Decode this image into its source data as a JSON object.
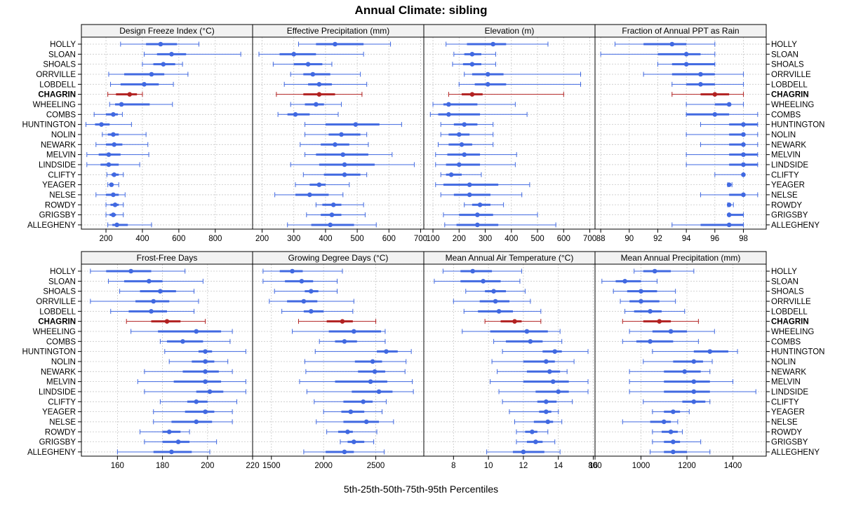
{
  "chart_data": {
    "type": "dot-range",
    "title": "Annual Climate: sibling",
    "xlabel": "5th-25th-50th-75th-95th Percentiles",
    "sites": [
      "HOLLY",
      "SLOAN",
      "SHOALS",
      "ORRVILLE",
      "LOBDELL",
      "CHAGRIN",
      "WHEELING",
      "COMBS",
      "HUNTINGTON",
      "NOLIN",
      "NEWARK",
      "MELVIN",
      "LINDSIDE",
      "CLIFTY",
      "YEAGER",
      "NELSE",
      "ROWDY",
      "GRIGSBY",
      "ALLEGHENY"
    ],
    "highlight": "CHAGRIN",
    "colors": {
      "normal": "#4169E1",
      "highlight": "#B22222",
      "grid": "#C8C8C8",
      "strip": "#F2F2F2"
    },
    "panels": [
      {
        "label": "Design Freeze Index (°C)",
        "xlim": [
          65,
          1005
        ],
        "ticks": [
          200,
          400,
          600,
          800
        ],
        "values": [
          [
            280,
            420,
            500,
            590,
            710
          ],
          [
            410,
            480,
            560,
            640,
            940
          ],
          [
            400,
            460,
            515,
            580,
            620
          ],
          [
            215,
            300,
            450,
            520,
            650
          ],
          [
            225,
            280,
            410,
            490,
            570
          ],
          [
            210,
            255,
            330,
            370,
            400
          ],
          [
            220,
            250,
            285,
            440,
            565
          ],
          [
            135,
            200,
            240,
            265,
            290
          ],
          [
            90,
            140,
            175,
            220,
            340
          ],
          [
            180,
            210,
            240,
            270,
            420
          ],
          [
            145,
            200,
            245,
            290,
            430
          ],
          [
            95,
            160,
            215,
            280,
            435
          ],
          [
            95,
            170,
            215,
            270,
            385
          ],
          [
            205,
            230,
            245,
            270,
            295
          ],
          [
            210,
            225,
            230,
            240,
            270
          ],
          [
            145,
            200,
            240,
            270,
            305
          ],
          [
            200,
            225,
            250,
            270,
            295
          ],
          [
            200,
            220,
            240,
            255,
            295
          ],
          [
            210,
            235,
            260,
            320,
            450
          ]
        ]
      },
      {
        "label": "Effective Precipitation (mm)",
        "xlim": [
          170,
          710
        ],
        "ticks": [
          200,
          300,
          400,
          500,
          600,
          700
        ],
        "values": [
          [
            315,
            370,
            430,
            520,
            605
          ],
          [
            190,
            255,
            300,
            370,
            520
          ],
          [
            235,
            300,
            345,
            390,
            420
          ],
          [
            290,
            330,
            360,
            415,
            510
          ],
          [
            270,
            345,
            380,
            420,
            530
          ],
          [
            245,
            330,
            380,
            430,
            515
          ],
          [
            290,
            335,
            370,
            395,
            450
          ],
          [
            250,
            280,
            305,
            350,
            440
          ],
          [
            335,
            400,
            495,
            570,
            640
          ],
          [
            335,
            410,
            450,
            510,
            530
          ],
          [
            320,
            385,
            430,
            475,
            535
          ],
          [
            335,
            370,
            455,
            535,
            610
          ],
          [
            290,
            380,
            460,
            555,
            680
          ],
          [
            330,
            395,
            460,
            510,
            530
          ],
          [
            305,
            350,
            380,
            400,
            475
          ],
          [
            240,
            305,
            350,
            410,
            455
          ],
          [
            370,
            390,
            425,
            450,
            520
          ],
          [
            340,
            385,
            420,
            450,
            525
          ],
          [
            280,
            355,
            415,
            490,
            560
          ]
        ]
      },
      {
        "label": "Elevation (m)",
        "xlim": [
          65,
          720
        ],
        "ticks": [
          100,
          200,
          300,
          400,
          500,
          600,
          700
        ],
        "values": [
          [
            150,
            230,
            330,
            380,
            540
          ],
          [
            180,
            220,
            250,
            285,
            340
          ],
          [
            175,
            215,
            250,
            285,
            340
          ],
          [
            220,
            250,
            310,
            370,
            665
          ],
          [
            200,
            260,
            310,
            380,
            665
          ],
          [
            160,
            210,
            250,
            290,
            600
          ],
          [
            100,
            140,
            160,
            270,
            415
          ],
          [
            90,
            120,
            160,
            280,
            460
          ],
          [
            130,
            180,
            220,
            270,
            330
          ],
          [
            130,
            160,
            200,
            240,
            330
          ],
          [
            120,
            160,
            210,
            250,
            330
          ],
          [
            110,
            155,
            220,
            280,
            420
          ],
          [
            110,
            150,
            200,
            280,
            415
          ],
          [
            130,
            150,
            170,
            210,
            285
          ],
          [
            110,
            140,
            240,
            350,
            470
          ],
          [
            130,
            180,
            240,
            320,
            440
          ],
          [
            220,
            250,
            280,
            320,
            370
          ],
          [
            140,
            200,
            270,
            330,
            500
          ],
          [
            145,
            190,
            270,
            350,
            570
          ]
        ]
      },
      {
        "label": "Fraction of Annual PPT as Rain",
        "xlim": [
          87.6,
          99.6
        ],
        "ticks": [
          88,
          90,
          92,
          94,
          96,
          98
        ],
        "values": [
          [
            89,
            91,
            93,
            94,
            96
          ],
          [
            88,
            92,
            94,
            95,
            96
          ],
          [
            92,
            93,
            94,
            96,
            96
          ],
          [
            91,
            93,
            95,
            96,
            98
          ],
          [
            93,
            94,
            95,
            96,
            98
          ],
          [
            93,
            95,
            96,
            97,
            98
          ],
          [
            94,
            96,
            97,
            97,
            98
          ],
          [
            94,
            94,
            96,
            97,
            99
          ],
          [
            95,
            97,
            98,
            99,
            99
          ],
          [
            94,
            97,
            98,
            98,
            99
          ],
          [
            95,
            97,
            98,
            98,
            99
          ],
          [
            94,
            97,
            98,
            99,
            99
          ],
          [
            94,
            97,
            98,
            99,
            99
          ],
          [
            96,
            98,
            98,
            98,
            98
          ],
          [
            96.9,
            97,
            97,
            97.1,
            97.2
          ],
          [
            95,
            97,
            98,
            98,
            99
          ],
          [
            96.9,
            97,
            97,
            97,
            97.3
          ],
          [
            97,
            97,
            97,
            98,
            98
          ],
          [
            93,
            95,
            97,
            98,
            98
          ]
        ]
      },
      {
        "label": "Frost-Free Days",
        "xlim": [
          144,
          220
        ],
        "ticks": [
          160,
          180,
          200,
          220
        ],
        "values": [
          [
            148,
            155,
            166,
            175,
            190
          ],
          [
            156,
            163,
            174,
            180,
            198
          ],
          [
            161,
            170,
            179,
            186,
            194
          ],
          [
            148,
            168,
            176,
            183,
            196
          ],
          [
            157,
            165,
            175,
            182,
            194
          ],
          [
            164,
            175,
            182,
            188,
            199
          ],
          [
            166,
            178,
            195,
            206,
            211
          ],
          [
            179,
            182,
            189,
            198,
            210
          ],
          [
            181,
            196,
            199,
            202,
            217
          ],
          [
            183,
            193,
            199,
            203,
            209
          ],
          [
            172,
            189,
            199,
            205,
            211
          ],
          [
            169,
            185,
            199,
            206,
            217
          ],
          [
            172,
            195,
            201,
            207,
            217
          ],
          [
            179,
            191,
            195,
            200,
            213
          ],
          [
            176,
            190,
            199,
            203,
            211
          ],
          [
            176,
            184,
            195,
            202,
            211
          ],
          [
            170,
            180,
            183,
            188,
            192
          ],
          [
            172,
            180,
            187,
            192,
            204
          ],
          [
            160,
            176,
            184,
            193,
            201
          ]
        ]
      },
      {
        "label": "Growing Degree Days (°C)",
        "xlim": [
          1320,
          2960
        ],
        "ticks": [
          1500,
          2000,
          2500
        ],
        "values": [
          [
            1420,
            1580,
            1700,
            1800,
            2180
          ],
          [
            1420,
            1630,
            1790,
            1900,
            2130
          ],
          [
            1530,
            1820,
            1880,
            1950,
            2130
          ],
          [
            1480,
            1650,
            1810,
            1940,
            2290
          ],
          [
            1600,
            1810,
            1880,
            2000,
            2280
          ],
          [
            1760,
            2030,
            2180,
            2280,
            2500
          ],
          [
            1700,
            2050,
            2290,
            2550,
            2590
          ],
          [
            1960,
            2110,
            2200,
            2320,
            2590
          ],
          [
            1920,
            2510,
            2600,
            2710,
            2840
          ],
          [
            1820,
            2300,
            2470,
            2560,
            2790
          ],
          [
            1830,
            2330,
            2490,
            2590,
            2780
          ],
          [
            1770,
            2110,
            2450,
            2610,
            2850
          ],
          [
            1840,
            2270,
            2530,
            2660,
            2860
          ],
          [
            1910,
            2190,
            2380,
            2470,
            2600
          ],
          [
            2000,
            2170,
            2260,
            2390,
            2560
          ],
          [
            1930,
            2190,
            2410,
            2530,
            2670
          ],
          [
            2030,
            2140,
            2230,
            2280,
            2510
          ],
          [
            2160,
            2230,
            2290,
            2390,
            2480
          ],
          [
            1810,
            2020,
            2200,
            2290,
            2580
          ]
        ]
      },
      {
        "label": "Mean Annual Air Temperature (°C)",
        "xlim": [
          6.3,
          16.1
        ],
        "ticks": [
          8,
          10,
          12,
          14,
          16
        ],
        "values": [
          [
            7.4,
            8.4,
            9.1,
            10.2,
            11.9
          ],
          [
            6.9,
            8.4,
            9.7,
            10.7,
            11.8
          ],
          [
            8.7,
            9.8,
            10.3,
            11.0,
            12.1
          ],
          [
            8.0,
            9.5,
            10.4,
            11.2,
            12.4
          ],
          [
            8.6,
            9.4,
            10.6,
            11.4,
            13.0
          ],
          [
            9.8,
            10.7,
            11.5,
            11.9,
            13.0
          ],
          [
            8.5,
            10.1,
            12.2,
            13.4,
            14.1
          ],
          [
            10.3,
            11.0,
            12.4,
            13.1,
            14.2
          ],
          [
            10.8,
            13.1,
            13.8,
            14.2,
            15.7
          ],
          [
            10.2,
            12.0,
            13.3,
            13.8,
            14.9
          ],
          [
            10.5,
            12.2,
            13.5,
            14.1,
            14.5
          ],
          [
            10.1,
            12.0,
            13.7,
            14.6,
            15.7
          ],
          [
            10.6,
            12.7,
            14.0,
            14.6,
            15.7
          ],
          [
            10.8,
            12.8,
            13.3,
            13.9,
            14.8
          ],
          [
            11.2,
            12.9,
            13.3,
            13.6,
            14.0
          ],
          [
            11.5,
            12.6,
            13.4,
            13.7,
            14.2
          ],
          [
            11.6,
            12.1,
            12.5,
            12.8,
            13.4
          ],
          [
            11.6,
            12.2,
            12.7,
            13.1,
            13.8
          ],
          [
            9.9,
            11.4,
            12.0,
            13.2,
            14.1
          ]
        ]
      },
      {
        "label": "Mean Annual Precipitation (mm)",
        "xlim": [
          800,
          1545
        ],
        "ticks": [
          800,
          1000,
          1200,
          1400
        ],
        "values": [
          [
            970,
            1010,
            1060,
            1130,
            1230
          ],
          [
            830,
            890,
            930,
            1000,
            1070
          ],
          [
            880,
            940,
            1000,
            1070,
            1150
          ],
          [
            910,
            950,
            1000,
            1080,
            1150
          ],
          [
            930,
            970,
            1040,
            1090,
            1190
          ],
          [
            920,
            1010,
            1080,
            1130,
            1250
          ],
          [
            950,
            1050,
            1130,
            1200,
            1320
          ],
          [
            920,
            980,
            1040,
            1140,
            1250
          ],
          [
            1050,
            1230,
            1300,
            1380,
            1420
          ],
          [
            1010,
            1140,
            1230,
            1270,
            1310
          ],
          [
            950,
            1100,
            1190,
            1260,
            1300
          ],
          [
            950,
            1100,
            1230,
            1300,
            1400
          ],
          [
            950,
            1100,
            1230,
            1300,
            1500
          ],
          [
            1010,
            1180,
            1230,
            1280,
            1300
          ],
          [
            1050,
            1100,
            1140,
            1170,
            1210
          ],
          [
            920,
            1040,
            1100,
            1130,
            1160
          ],
          [
            1050,
            1090,
            1130,
            1160,
            1180
          ],
          [
            1050,
            1100,
            1140,
            1170,
            1260
          ],
          [
            1040,
            1100,
            1140,
            1200,
            1300
          ]
        ]
      }
    ]
  }
}
